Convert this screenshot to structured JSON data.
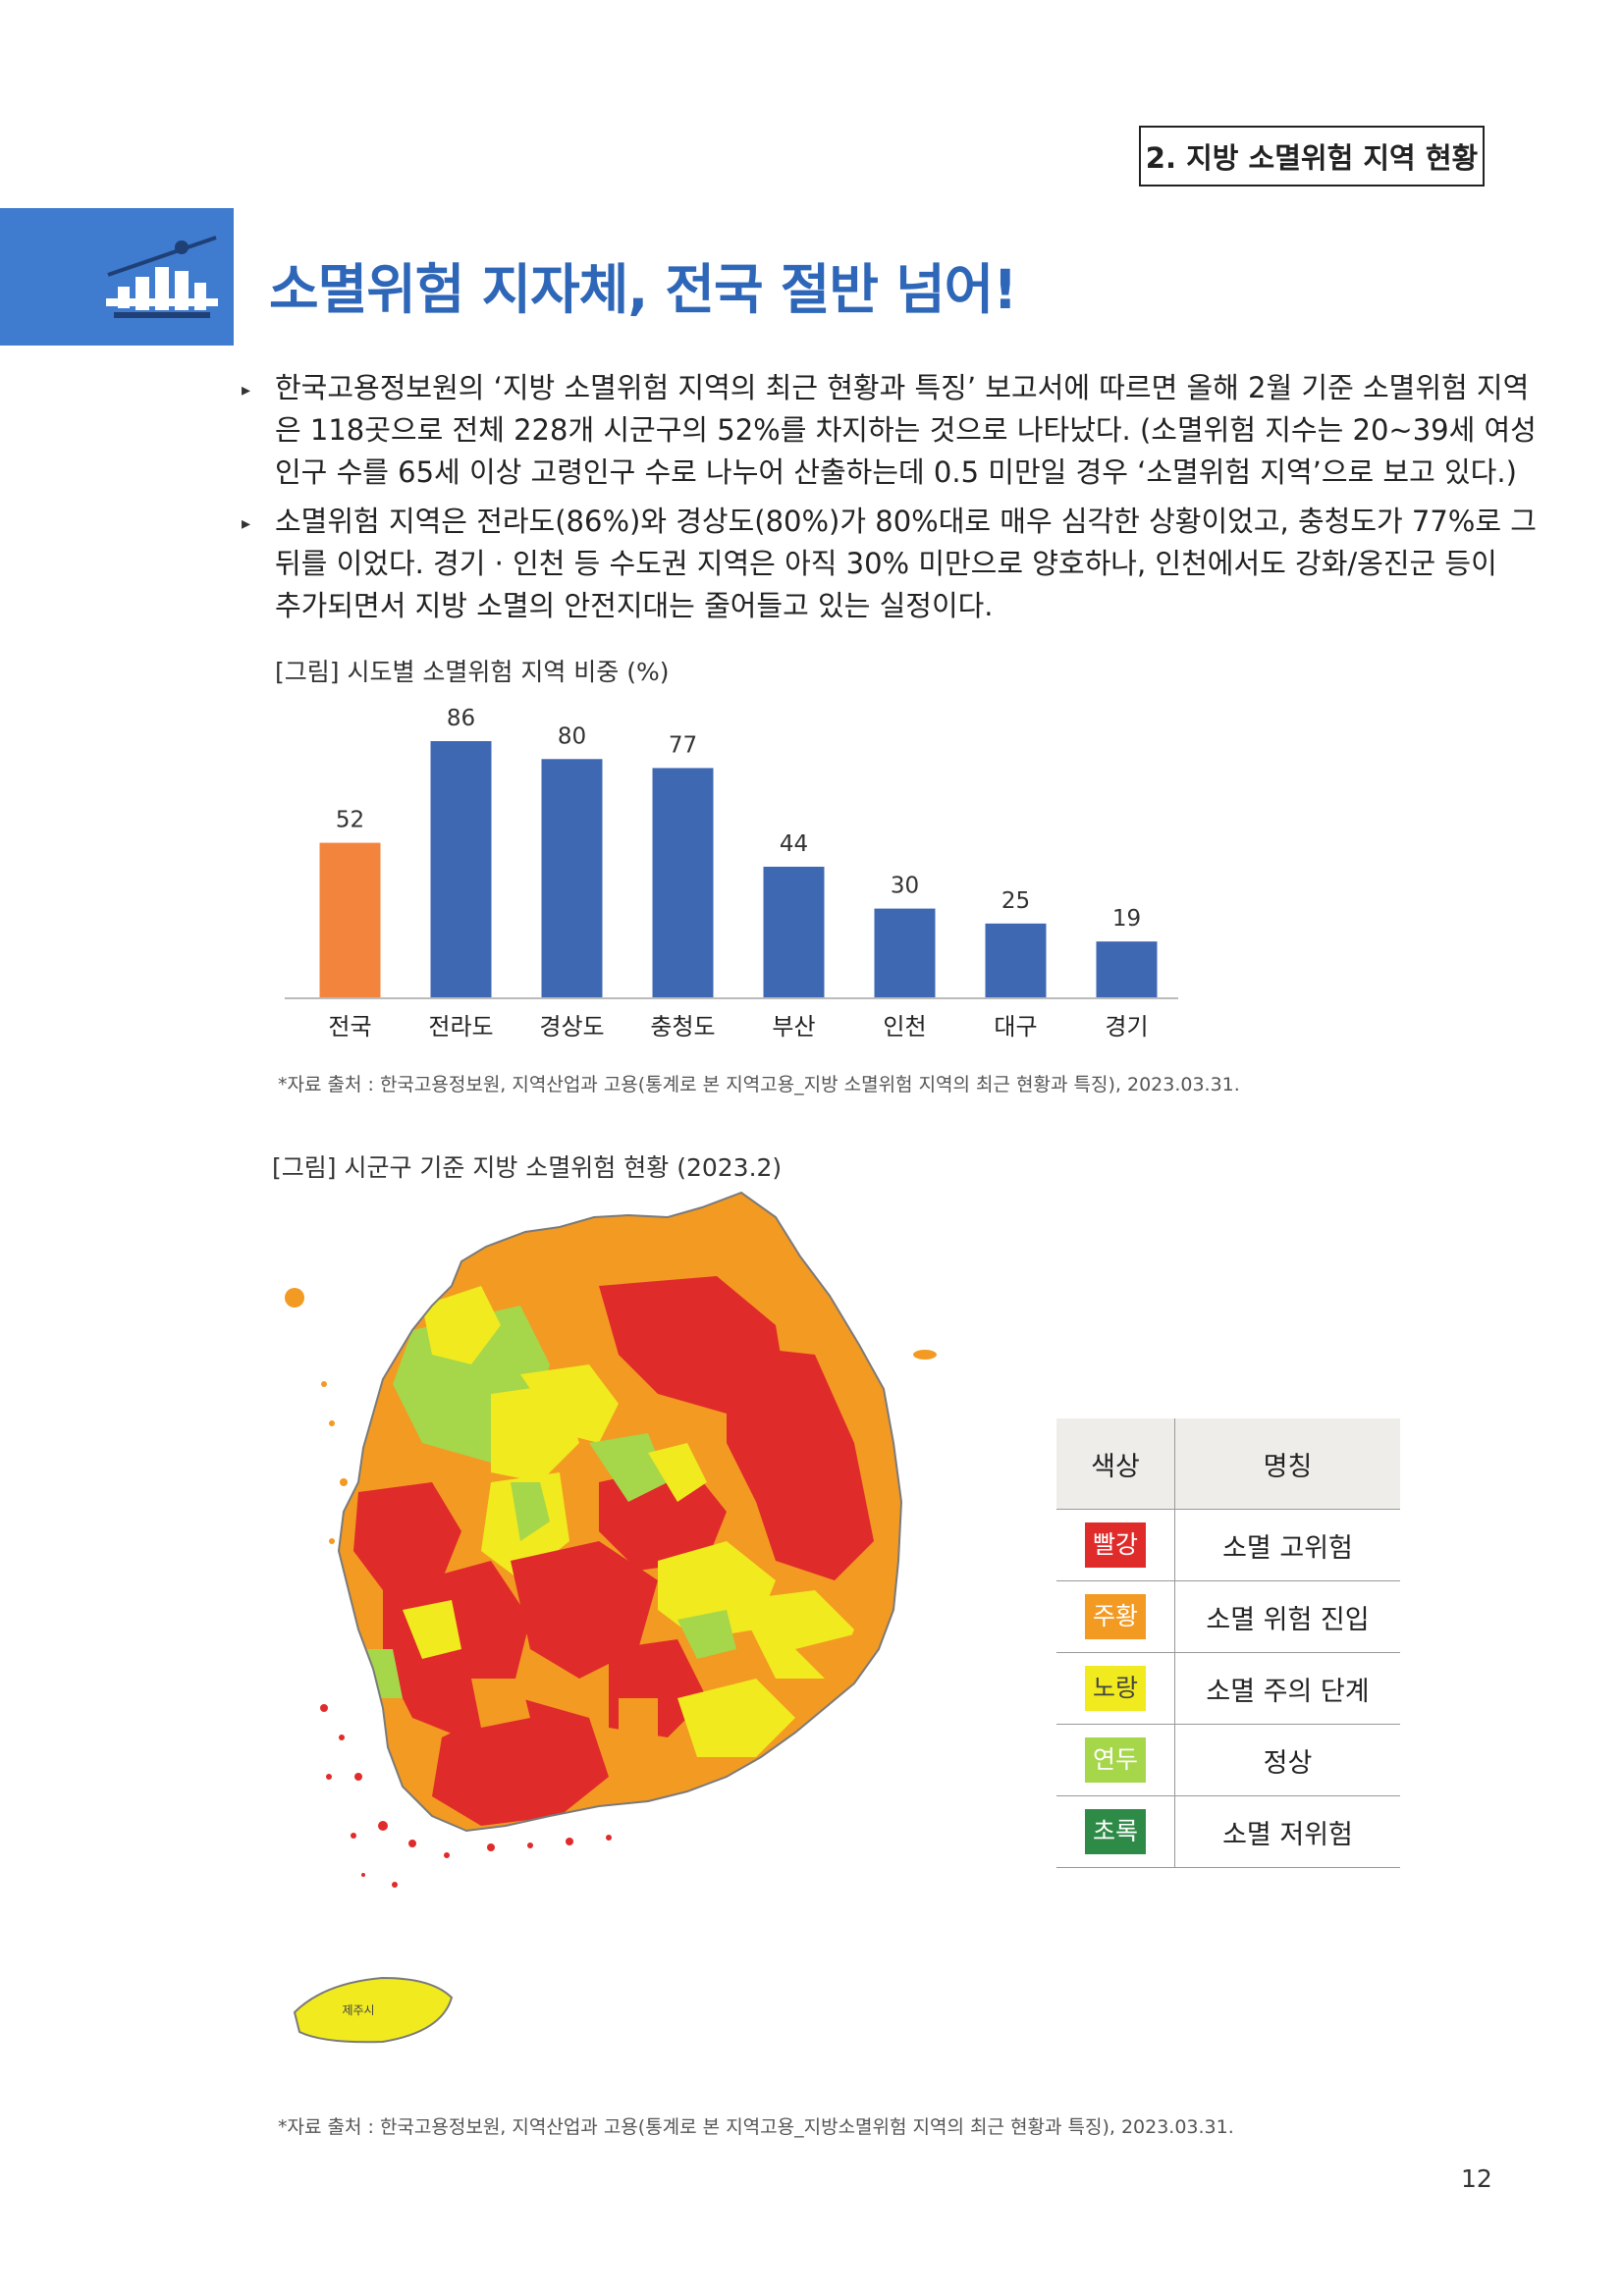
{
  "header": {
    "section": "2. 지방 소멸위험 지역 현황"
  },
  "title": {
    "main": "소멸위험 지자체, 전국 절반 넘어!"
  },
  "bullets": [
    {
      "lines": [
        "한국고용정보원의 ‘지방 소멸위험 지역의 최근 현황과 특징’ 보고서에 따르면 올해 2월 기준 소멸위험 지역",
        "은 118곳으로 전체 228개 시군구의 52%를 차지하는 것으로 나타났다. (소멸위험 지수는 20~39세 여성",
        "인구 수를 65세 이상 고령인구 수로 나누어 산출하는데 0.5 미만일 경우 ‘소멸위험 지역’으로 보고 있다.)"
      ]
    },
    {
      "lines": [
        "소멸위험 지역은 전라도(86%)와 경상도(80%)가 80%대로 매우 심각한 상황이었고, 충청도가 77%로 그",
        "뒤를 이었다. 경기 · 인천 등 수도권 지역은 아직 30% 미만으로 양호하나, 인천에서도 강화/옹진군 등이",
        "추가되면서 지방 소멸의 안전지대는 줄어들고 있는 실정이다."
      ]
    }
  ],
  "figure1": {
    "caption": "[그림] 시도별 소멸위험 지역 비중 (%)",
    "source": "*자료 출처 : 한국고용정보원, 지역산업과 고용(통계로 본 지역고용_지방 소멸위험 지역의 최근 현황과 특징), 2023.03.31."
  },
  "chart_data": {
    "type": "bar",
    "title": "[그림] 시도별 소멸위험 지역 비중 (%)",
    "categories": [
      "전국",
      "전라도",
      "경상도",
      "충청도",
      "부산",
      "인천",
      "대구",
      "경기"
    ],
    "values": [
      52,
      86,
      80,
      77,
      44,
      30,
      25,
      19
    ],
    "colors": [
      "#f2843d",
      "#3f68b3",
      "#3f68b3",
      "#3f68b3",
      "#3f68b3",
      "#3f68b3",
      "#3f68b3",
      "#3f68b3"
    ],
    "ylim": [
      0,
      86
    ],
    "grid": false,
    "data_labels": true
  },
  "figure2": {
    "caption": "[그림] 시군구 기준 지방 소멸위험 현황 (2023.2)",
    "map_label": "제주시",
    "source": "*자료 출처 : 한국고용정보원, 지역산업과 고용(통계로 본 지역고용_지방소멸위험 지역의 최근 현황과 특징), 2023.03.31."
  },
  "legend": {
    "header_color": "색상",
    "header_name": "명칭",
    "rows": [
      {
        "chip": "빨강",
        "color": "#e02b2b",
        "name": "소멸 고위험"
      },
      {
        "chip": "주황",
        "color": "#f39a22",
        "name": "소멸 위험 진입"
      },
      {
        "chip": "노랑",
        "color": "#f0ea1e",
        "name": "소멸 주의 단계"
      },
      {
        "chip": "연두",
        "color": "#a6d64a",
        "name": "정상"
      },
      {
        "chip": "초록",
        "color": "#2e8b47",
        "name": "소멸 저위험"
      }
    ]
  },
  "page": {
    "number": "12"
  }
}
